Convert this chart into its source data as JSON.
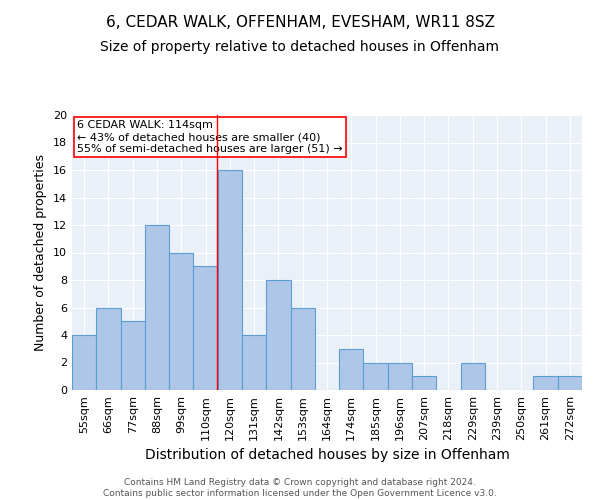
{
  "title": "6, CEDAR WALK, OFFENHAM, EVESHAM, WR11 8SZ",
  "subtitle": "Size of property relative to detached houses in Offenham",
  "xlabel": "Distribution of detached houses by size in Offenham",
  "ylabel": "Number of detached properties",
  "categories": [
    "55sqm",
    "66sqm",
    "77sqm",
    "88sqm",
    "99sqm",
    "110sqm",
    "120sqm",
    "131sqm",
    "142sqm",
    "153sqm",
    "164sqm",
    "174sqm",
    "185sqm",
    "196sqm",
    "207sqm",
    "218sqm",
    "229sqm",
    "239sqm",
    "250sqm",
    "261sqm",
    "272sqm"
  ],
  "values": [
    4,
    6,
    5,
    12,
    10,
    9,
    16,
    4,
    8,
    6,
    0,
    3,
    2,
    2,
    1,
    0,
    2,
    0,
    0,
    1,
    1
  ],
  "bar_color": "#aec6e8",
  "bar_edge_color": "#5a9fd4",
  "background_color": "#eaf0f8",
  "annotation_text": "6 CEDAR WALK: 114sqm\n← 43% of detached houses are smaller (40)\n55% of semi-detached houses are larger (51) →",
  "annotation_box_color": "white",
  "annotation_box_edge": "red",
  "vline_x_index": 5.45,
  "vline_color": "red",
  "ylim": [
    0,
    20
  ],
  "yticks": [
    0,
    2,
    4,
    6,
    8,
    10,
    12,
    14,
    16,
    18,
    20
  ],
  "footnote": "Contains HM Land Registry data © Crown copyright and database right 2024.\nContains public sector information licensed under the Open Government Licence v3.0.",
  "title_fontsize": 11,
  "subtitle_fontsize": 10,
  "xlabel_fontsize": 10,
  "ylabel_fontsize": 9,
  "tick_fontsize": 8,
  "annot_fontsize": 8,
  "footnote_fontsize": 6.5
}
